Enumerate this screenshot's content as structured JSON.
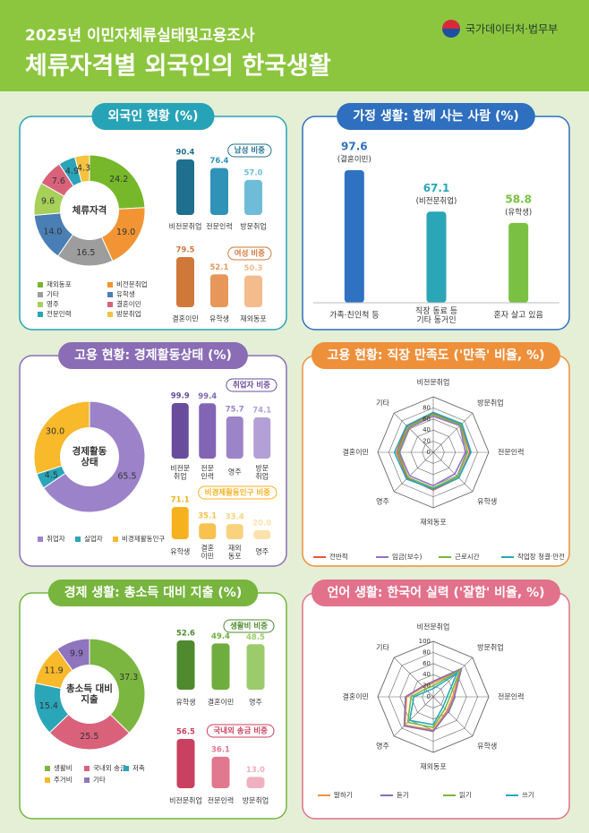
{
  "header": {
    "subtitle": "2025년 이민자체류실태및고용조사",
    "title": "체류자격별 외국인의 한국생활",
    "source": "국가데이터처·법무부"
  },
  "chart_data": [
    {
      "title": "외국인 현황 (%)",
      "charts": [
        {
          "type": "donut",
          "center_label": "체류자격",
          "categories": [
            "재외동포",
            "비전문취업",
            "기타",
            "유학생",
            "영주",
            "결혼이민",
            "전문인력",
            "방문취업"
          ],
          "values": [
            24.2,
            19.0,
            16.5,
            14.0,
            9.6,
            7.6,
            4.9,
            4.3
          ],
          "value_labels": [
            "24.2",
            "19.0",
            "16.5",
            "14.0",
            "9.6",
            "7.6",
            "4.9",
            "4.3"
          ],
          "colors": [
            "#76b82a",
            "#f29433",
            "#9d9d9d",
            "#4a7fb5",
            "#a6d05a",
            "#d9627a",
            "#2aa4b8",
            "#f5c242"
          ],
          "legend": "bottom"
        },
        {
          "type": "bar",
          "title": "남성 비중",
          "categories": [
            "비전문취업",
            "전문인력",
            "방문취업"
          ],
          "values": [
            90.4,
            76.4,
            57.0
          ],
          "value_labels": [
            "90.4",
            "76.4",
            "57.0"
          ],
          "colors": [
            "#1f6f8f",
            "#2f93b8",
            "#6fbcd9"
          ]
        },
        {
          "type": "bar",
          "title": "여성 비중",
          "categories": [
            "결혼이민",
            "유학생",
            "재외동포"
          ],
          "values": [
            79.5,
            52.1,
            50.3
          ],
          "colors": [
            "#d0783a",
            "#e8975a",
            "#f4bb8d"
          ]
        }
      ]
    },
    {
      "title": "가정 생활: 함께 사는 사람 (%)",
      "charts": [
        {
          "type": "bar",
          "categories": [
            "가족·친인척 등",
            "직장 동료 등\n기타 동거인",
            "혼자 살고 있음"
          ],
          "values": [
            97.6,
            67.1,
            58.8
          ],
          "annotations": [
            "(결혼이민)",
            "(비전문취업)",
            "(유학생)"
          ],
          "colors": [
            "#2f72c2",
            "#2aa6b8",
            "#7ac143"
          ]
        }
      ]
    },
    {
      "title": "고용 현황: 경제활동상태 (%)",
      "charts": [
        {
          "type": "donut",
          "center_label": "경제활동\n상태",
          "categories": [
            "취업자",
            "실업자",
            "비경제활동인구"
          ],
          "values": [
            65.5,
            4.5,
            30.0
          ],
          "value_labels": [
            "65.5",
            "4.5",
            "30.0"
          ],
          "colors": [
            "#9c83c9",
            "#2aa6b8",
            "#f8b92a"
          ],
          "legend": "bottom"
        },
        {
          "type": "bar",
          "title": "취업자 비중",
          "categories": [
            "비전문\n취업",
            "전문\n인력",
            "영주",
            "방문\n취업"
          ],
          "values": [
            99.9,
            99.4,
            75.7,
            74.1
          ],
          "colors": [
            "#6a4c9c",
            "#8265b4",
            "#9c84c8",
            "#b3a0d6"
          ]
        },
        {
          "type": "bar",
          "title": "비경제활동인구 비중",
          "categories": [
            "유학생",
            "결혼\n이민",
            "재외\n동포",
            "영주"
          ],
          "values": [
            71.1,
            35.1,
            33.4,
            20.0
          ],
          "value_labels": [
            "71.1",
            "35.1",
            "33.4",
            "20.0"
          ],
          "colors": [
            "#f5b21e",
            "#f7c24f",
            "#f9d27e",
            "#fbe2ad"
          ]
        }
      ]
    },
    {
      "title": "고용 현황: 직장 만족도 ('만족' 비율, %)",
      "charts": [
        {
          "type": "radar",
          "categories": [
            "비전문취업",
            "방문취업",
            "전문인력",
            "유학생",
            "재외동포",
            "영주",
            "결혼이민",
            "기타"
          ],
          "rlim": [
            0,
            100
          ],
          "rticks": [
            0,
            20,
            40,
            60,
            80
          ],
          "legend": "bottom",
          "series": [
            {
              "name": "전반적",
              "color": "#e8553a",
              "values": [
                70,
                72,
                66,
                65,
                68,
                66,
                66,
                67
              ]
            },
            {
              "name": "임금(보수)",
              "color": "#9a6fc4",
              "values": [
                65,
                68,
                58,
                55,
                60,
                60,
                62,
                62
              ]
            },
            {
              "name": "근로시간",
              "color": "#7ab640",
              "values": [
                68,
                70,
                62,
                62,
                64,
                64,
                64,
                64
              ]
            },
            {
              "name": "작업장 청결·안전",
              "color": "#22a9c0",
              "values": [
                72,
                73,
                68,
                65,
                66,
                68,
                70,
                68
              ]
            }
          ]
        }
      ]
    },
    {
      "title": "경제 생활: 총소득 대비 지출 (%)",
      "charts": [
        {
          "type": "donut",
          "center_label": "총소득 대비\n지출",
          "categories": [
            "생활비",
            "국내외 송금",
            "저축",
            "주거비",
            "기타"
          ],
          "values": [
            37.3,
            25.5,
            15.4,
            11.9,
            9.9
          ],
          "colors": [
            "#7ab640",
            "#d9627a",
            "#2aa6b8",
            "#f8b92a",
            "#8f74bf"
          ],
          "legend": "bottom"
        },
        {
          "type": "bar",
          "title": "생활비 비중",
          "categories": [
            "유학생",
            "결혼이민",
            "영주"
          ],
          "values": [
            52.6,
            49.4,
            48.5
          ],
          "colors": [
            "#4f8a2e",
            "#6fae3e",
            "#9bcb6a"
          ]
        },
        {
          "type": "bar",
          "title": "국내외 송금 비중",
          "categories": [
            "비전문취업",
            "전문인력",
            "방문취업"
          ],
          "values": [
            56.5,
            36.1,
            13.0
          ],
          "value_labels": [
            "56.5",
            "36.1",
            "13.0"
          ],
          "colors": [
            "#c9415f",
            "#e27790",
            "#f1b0bf"
          ]
        }
      ]
    },
    {
      "title": "언어 생활: 한국어 실력 ('잘함' 비율, %)",
      "charts": [
        {
          "type": "radar",
          "categories": [
            "비전문취업",
            "방문취업",
            "전문인력",
            "유학생",
            "재외동포",
            "영주",
            "결혼이민",
            "기타"
          ],
          "rlim": [
            0,
            100
          ],
          "rticks": [
            0,
            20,
            40,
            60,
            80,
            100
          ],
          "legend": "bottom",
          "series": [
            {
              "name": "말하기",
              "color": "#f0913a",
              "values": [
                25,
                70,
                35,
                35,
                60,
                72,
                48,
                25
              ]
            },
            {
              "name": "듣기",
              "color": "#8a6db5",
              "values": [
                28,
                72,
                38,
                38,
                62,
                74,
                50,
                27
              ]
            },
            {
              "name": "읽기",
              "color": "#7ab640",
              "values": [
                20,
                68,
                30,
                30,
                55,
                65,
                40,
                20
              ]
            },
            {
              "name": "쓰기",
              "color": "#22a9c0",
              "values": [
                15,
                60,
                25,
                25,
                50,
                60,
                35,
                15
              ]
            }
          ]
        }
      ]
    }
  ]
}
